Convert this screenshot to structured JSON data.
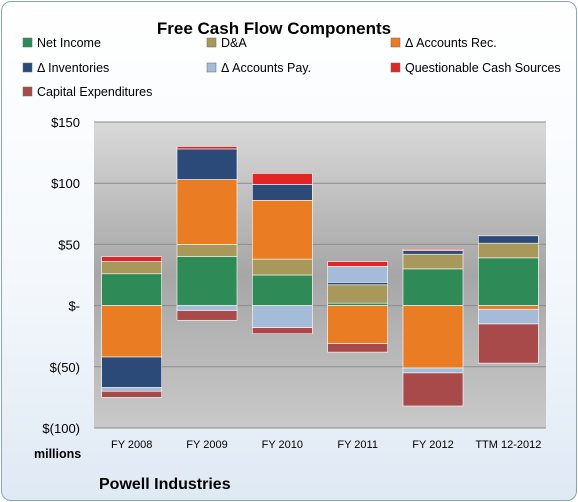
{
  "chart_data": {
    "type": "bar",
    "stacked": true,
    "title": "Free Cash Flow Components",
    "categories": [
      "FY 2008",
      "FY 2009",
      "FY 2010",
      "FY 2011",
      "FY 2012",
      "TTM 12-2012"
    ],
    "ylim": [
      -100,
      150
    ],
    "yticks": [
      150,
      100,
      50,
      0,
      -50,
      -100
    ],
    "ytick_labels": [
      "$150",
      "$100",
      "$50",
      "$-",
      "$(50)",
      "$(100)"
    ],
    "unit_label": "millions",
    "footer": "Powell Industries",
    "grid": true,
    "legend_position": "top",
    "series": [
      {
        "name": "Net Income",
        "color": "#2e8b57",
        "values": [
          26,
          40,
          25,
          2,
          30,
          39
        ]
      },
      {
        "name": "D&A",
        "color": "#a8985c",
        "values": [
          10,
          10,
          13,
          15,
          12,
          12
        ]
      },
      {
        "name": "Δ Accounts Rec.",
        "color": "#ea7d23",
        "values": [
          -42,
          53,
          48,
          -31,
          -51,
          -3
        ]
      },
      {
        "name": "Δ Inventories",
        "color": "#2c4a78",
        "values": [
          -25,
          25,
          13,
          2,
          3,
          6
        ]
      },
      {
        "name": "Δ Accounts Pay.",
        "color": "#a4bcd8",
        "values": [
          -3,
          -4,
          -18,
          13,
          -4,
          -12
        ]
      },
      {
        "name": "Questionable Cash Sources",
        "color": "#e02525",
        "values": [
          4,
          2,
          9,
          4,
          1,
          0
        ]
      },
      {
        "name": "Capital Expenditures",
        "color": "#a84a4a",
        "values": [
          -5,
          -8,
          -5,
          -7,
          -27,
          -32
        ]
      }
    ]
  }
}
